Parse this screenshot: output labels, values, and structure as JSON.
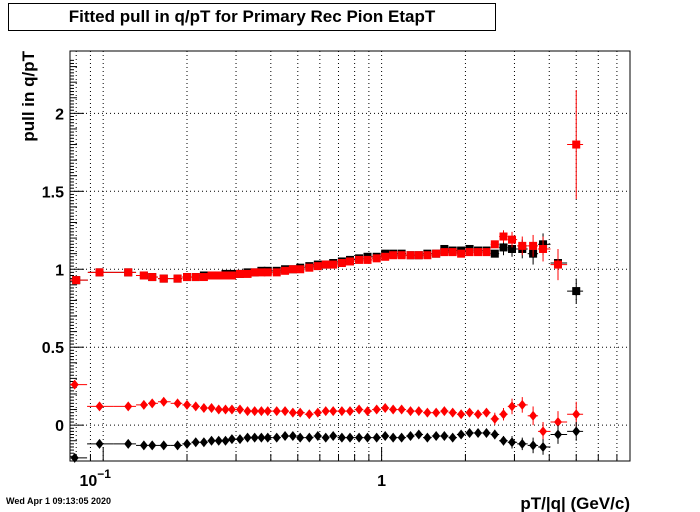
{
  "title": "Fitted pull in q/pT for Primary Rec Pion EtapT",
  "timestamp": "Wed Apr  1 09:13:05 2020",
  "colors": {
    "black": "#000000",
    "red": "#ff0000",
    "grid": "#000000"
  },
  "chart_data": {
    "type": "scatter",
    "title": "Fitted pull in q/pT for Primary Rec Pion EtapT",
    "xlabel": "pT/|q| (GeV/c)",
    "ylabel": "pull in q/pT",
    "xscale": "log",
    "xlim": [
      0.076,
      7.8
    ],
    "ylim": [
      -0.23,
      2.4
    ],
    "x_tick_labels": [
      {
        "x": 0.1,
        "label": "10^{-1}"
      },
      {
        "x": 1,
        "label": "1"
      }
    ],
    "y_ticks": [
      0,
      0.5,
      1,
      1.5,
      2
    ],
    "y_tick_labels": [
      "0",
      "0.5",
      "1",
      "1.5",
      "2"
    ],
    "grid": true,
    "series": [
      {
        "marker": "square",
        "color": "#000000",
        "points": [
          [
            0.08,
            0.93
          ],
          [
            0.097,
            0.98
          ],
          [
            0.123,
            0.98
          ],
          [
            0.14,
            0.96
          ],
          [
            0.15,
            0.95
          ],
          [
            0.165,
            0.94
          ],
          [
            0.185,
            0.94
          ],
          [
            0.2,
            0.95
          ],
          [
            0.215,
            0.95
          ],
          [
            0.23,
            0.96
          ],
          [
            0.245,
            0.96
          ],
          [
            0.26,
            0.96
          ],
          [
            0.275,
            0.97
          ],
          [
            0.29,
            0.97
          ],
          [
            0.31,
            0.97
          ],
          [
            0.33,
            0.98
          ],
          [
            0.35,
            0.98
          ],
          [
            0.37,
            0.99
          ],
          [
            0.39,
            0.99
          ],
          [
            0.42,
            0.99
          ],
          [
            0.45,
            1.0
          ],
          [
            0.48,
            1.0
          ],
          [
            0.51,
            1.01
          ],
          [
            0.55,
            1.02
          ],
          [
            0.59,
            1.03
          ],
          [
            0.63,
            1.03
          ],
          [
            0.67,
            1.04
          ],
          [
            0.72,
            1.05
          ],
          [
            0.77,
            1.06
          ],
          [
            0.83,
            1.07
          ],
          [
            0.89,
            1.08
          ],
          [
            0.96,
            1.08
          ],
          [
            1.03,
            1.1
          ],
          [
            1.1,
            1.1
          ],
          [
            1.18,
            1.1
          ],
          [
            1.27,
            1.09
          ],
          [
            1.36,
            1.09
          ],
          [
            1.46,
            1.1
          ],
          [
            1.57,
            1.1
          ],
          [
            1.68,
            1.13
          ],
          [
            1.8,
            1.12
          ],
          [
            1.93,
            1.12
          ],
          [
            2.07,
            1.13
          ],
          [
            2.22,
            1.12
          ],
          [
            2.38,
            1.12
          ],
          [
            2.55,
            1.1
          ],
          [
            2.74,
            1.14
          ],
          [
            2.94,
            1.13
          ],
          [
            3.2,
            1.13
          ],
          [
            3.5,
            1.1
          ],
          [
            3.8,
            1.16
          ],
          [
            4.3,
            1.04
          ],
          [
            5.0,
            0.86
          ]
        ],
        "yerr": [
          0,
          0,
          0,
          0,
          0,
          0,
          0,
          0,
          0,
          0,
          0,
          0,
          0,
          0,
          0,
          0,
          0,
          0,
          0,
          0,
          0,
          0,
          0,
          0,
          0,
          0,
          0,
          0,
          0,
          0,
          0,
          0,
          0,
          0,
          0,
          0,
          0,
          0,
          0,
          0,
          0,
          0,
          0,
          0,
          0,
          0,
          0.05,
          0.05,
          0.06,
          0.07,
          0.07,
          0.09,
          0.08
        ]
      },
      {
        "marker": "square",
        "color": "#ff0000",
        "points": [
          [
            0.08,
            0.93
          ],
          [
            0.097,
            0.98
          ],
          [
            0.123,
            0.98
          ],
          [
            0.14,
            0.96
          ],
          [
            0.15,
            0.95
          ],
          [
            0.165,
            0.94
          ],
          [
            0.185,
            0.94
          ],
          [
            0.2,
            0.95
          ],
          [
            0.215,
            0.95
          ],
          [
            0.23,
            0.95
          ],
          [
            0.245,
            0.96
          ],
          [
            0.26,
            0.96
          ],
          [
            0.275,
            0.96
          ],
          [
            0.29,
            0.96
          ],
          [
            0.31,
            0.97
          ],
          [
            0.33,
            0.97
          ],
          [
            0.35,
            0.98
          ],
          [
            0.37,
            0.98
          ],
          [
            0.39,
            0.98
          ],
          [
            0.42,
            0.98
          ],
          [
            0.45,
            0.99
          ],
          [
            0.48,
            1.0
          ],
          [
            0.51,
            1.0
          ],
          [
            0.55,
            1.01
          ],
          [
            0.59,
            1.02
          ],
          [
            0.63,
            1.03
          ],
          [
            0.67,
            1.03
          ],
          [
            0.72,
            1.04
          ],
          [
            0.77,
            1.05
          ],
          [
            0.83,
            1.06
          ],
          [
            0.89,
            1.06
          ],
          [
            0.96,
            1.07
          ],
          [
            1.03,
            1.08
          ],
          [
            1.1,
            1.09
          ],
          [
            1.18,
            1.09
          ],
          [
            1.27,
            1.09
          ],
          [
            1.36,
            1.09
          ],
          [
            1.46,
            1.09
          ],
          [
            1.57,
            1.1
          ],
          [
            1.68,
            1.11
          ],
          [
            1.8,
            1.11
          ],
          [
            1.93,
            1.1
          ],
          [
            2.07,
            1.11
          ],
          [
            2.22,
            1.11
          ],
          [
            2.38,
            1.11
          ],
          [
            2.55,
            1.16
          ],
          [
            2.74,
            1.21
          ],
          [
            2.94,
            1.19
          ],
          [
            3.2,
            1.15
          ],
          [
            3.5,
            1.15
          ],
          [
            3.8,
            1.13
          ],
          [
            4.3,
            1.03
          ],
          [
            5.0,
            1.8
          ]
        ],
        "yerr": [
          0,
          0,
          0,
          0,
          0,
          0,
          0,
          0,
          0,
          0,
          0,
          0,
          0,
          0,
          0,
          0,
          0,
          0,
          0,
          0,
          0,
          0,
          0,
          0,
          0,
          0,
          0,
          0,
          0,
          0,
          0,
          0,
          0,
          0,
          0,
          0,
          0,
          0,
          0,
          0,
          0,
          0,
          0,
          0,
          0,
          0,
          0.04,
          0.05,
          0.06,
          0.07,
          0.08,
          0.1,
          0.35
        ]
      },
      {
        "marker": "diamond",
        "color": "#ff0000",
        "points": [
          [
            0.079,
            0.26
          ],
          [
            0.097,
            0.12
          ],
          [
            0.123,
            0.12
          ],
          [
            0.14,
            0.13
          ],
          [
            0.15,
            0.14
          ],
          [
            0.165,
            0.15
          ],
          [
            0.185,
            0.14
          ],
          [
            0.2,
            0.13
          ],
          [
            0.215,
            0.12
          ],
          [
            0.23,
            0.11
          ],
          [
            0.245,
            0.11
          ],
          [
            0.26,
            0.1
          ],
          [
            0.275,
            0.1
          ],
          [
            0.29,
            0.1
          ],
          [
            0.31,
            0.1
          ],
          [
            0.33,
            0.09
          ],
          [
            0.35,
            0.09
          ],
          [
            0.37,
            0.09
          ],
          [
            0.39,
            0.09
          ],
          [
            0.42,
            0.09
          ],
          [
            0.45,
            0.09
          ],
          [
            0.48,
            0.08
          ],
          [
            0.51,
            0.08
          ],
          [
            0.55,
            0.07
          ],
          [
            0.59,
            0.08
          ],
          [
            0.63,
            0.09
          ],
          [
            0.67,
            0.09
          ],
          [
            0.72,
            0.09
          ],
          [
            0.77,
            0.09
          ],
          [
            0.83,
            0.1
          ],
          [
            0.89,
            0.09
          ],
          [
            0.96,
            0.1
          ],
          [
            1.03,
            0.11
          ],
          [
            1.1,
            0.1
          ],
          [
            1.18,
            0.1
          ],
          [
            1.27,
            0.09
          ],
          [
            1.36,
            0.09
          ],
          [
            1.46,
            0.08
          ],
          [
            1.57,
            0.08
          ],
          [
            1.68,
            0.09
          ],
          [
            1.8,
            0.08
          ],
          [
            1.93,
            0.07
          ],
          [
            2.07,
            0.08
          ],
          [
            2.22,
            0.07
          ],
          [
            2.38,
            0.08
          ],
          [
            2.55,
            0.04
          ],
          [
            2.74,
            0.07
          ],
          [
            2.94,
            0.12
          ],
          [
            3.2,
            0.13
          ],
          [
            3.5,
            0.06
          ],
          [
            3.8,
            -0.04
          ],
          [
            4.3,
            0.02
          ],
          [
            5.0,
            0.07
          ]
        ],
        "yerr": [
          0,
          0,
          0,
          0,
          0,
          0,
          0,
          0,
          0,
          0,
          0,
          0,
          0,
          0,
          0,
          0,
          0,
          0,
          0,
          0,
          0,
          0,
          0,
          0,
          0,
          0,
          0,
          0,
          0,
          0,
          0,
          0,
          0,
          0,
          0,
          0,
          0,
          0,
          0,
          0,
          0,
          0,
          0,
          0,
          0,
          0.04,
          0.04,
          0.05,
          0.05,
          0.06,
          0.06,
          0.07,
          0.08
        ]
      },
      {
        "marker": "diamond",
        "color": "#000000",
        "points": [
          [
            0.079,
            -0.21
          ],
          [
            0.097,
            -0.12
          ],
          [
            0.123,
            -0.12
          ],
          [
            0.14,
            -0.13
          ],
          [
            0.15,
            -0.13
          ],
          [
            0.165,
            -0.13
          ],
          [
            0.185,
            -0.13
          ],
          [
            0.2,
            -0.12
          ],
          [
            0.215,
            -0.11
          ],
          [
            0.23,
            -0.11
          ],
          [
            0.245,
            -0.1
          ],
          [
            0.26,
            -0.1
          ],
          [
            0.275,
            -0.1
          ],
          [
            0.29,
            -0.09
          ],
          [
            0.31,
            -0.09
          ],
          [
            0.33,
            -0.08
          ],
          [
            0.35,
            -0.08
          ],
          [
            0.37,
            -0.08
          ],
          [
            0.39,
            -0.08
          ],
          [
            0.42,
            -0.08
          ],
          [
            0.45,
            -0.07
          ],
          [
            0.48,
            -0.07
          ],
          [
            0.51,
            -0.08
          ],
          [
            0.55,
            -0.08
          ],
          [
            0.59,
            -0.07
          ],
          [
            0.63,
            -0.08
          ],
          [
            0.67,
            -0.07
          ],
          [
            0.72,
            -0.08
          ],
          [
            0.77,
            -0.08
          ],
          [
            0.83,
            -0.08
          ],
          [
            0.89,
            -0.08
          ],
          [
            0.96,
            -0.08
          ],
          [
            1.03,
            -0.07
          ],
          [
            1.1,
            -0.08
          ],
          [
            1.18,
            -0.08
          ],
          [
            1.27,
            -0.07
          ],
          [
            1.36,
            -0.06
          ],
          [
            1.46,
            -0.08
          ],
          [
            1.57,
            -0.07
          ],
          [
            1.68,
            -0.07
          ],
          [
            1.8,
            -0.08
          ],
          [
            1.93,
            -0.06
          ],
          [
            2.07,
            -0.05
          ],
          [
            2.22,
            -0.05
          ],
          [
            2.38,
            -0.05
          ],
          [
            2.55,
            -0.06
          ],
          [
            2.74,
            -0.1
          ],
          [
            2.94,
            -0.11
          ],
          [
            3.2,
            -0.12
          ],
          [
            3.5,
            -0.13
          ],
          [
            3.8,
            -0.14
          ],
          [
            4.3,
            -0.06
          ],
          [
            5.0,
            -0.04
          ]
        ],
        "yerr": [
          0,
          0,
          0,
          0,
          0,
          0,
          0,
          0,
          0,
          0,
          0,
          0,
          0,
          0,
          0,
          0,
          0,
          0,
          0,
          0,
          0,
          0,
          0,
          0,
          0,
          0,
          0,
          0,
          0,
          0,
          0,
          0,
          0,
          0,
          0,
          0,
          0,
          0,
          0,
          0,
          0,
          0,
          0,
          0,
          0,
          0.03,
          0.03,
          0.04,
          0.04,
          0.05,
          0.05,
          0.06,
          0.06
        ]
      }
    ]
  }
}
